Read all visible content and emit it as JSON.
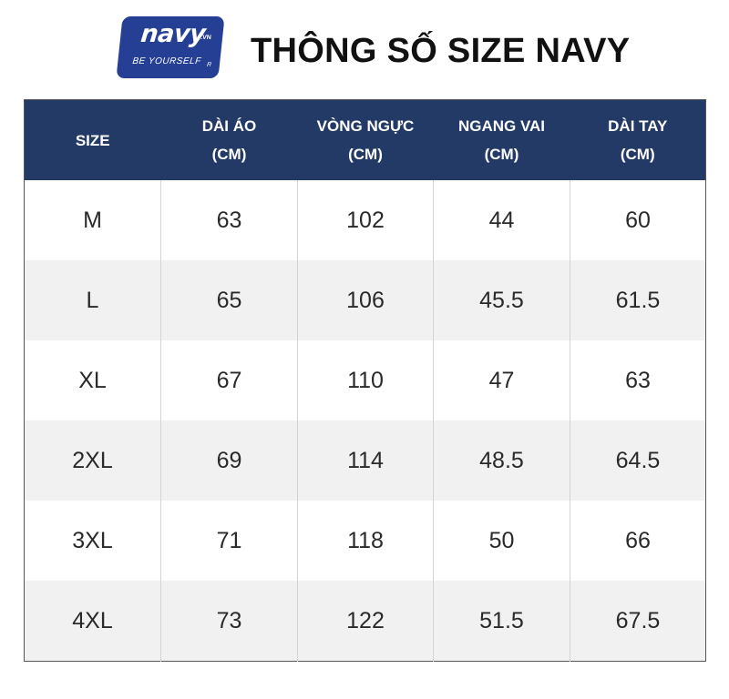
{
  "logo": {
    "word": "navy",
    "superscript": ".VN",
    "tagline": "BE YOURSELF",
    "registered": "R",
    "color": "#243f93"
  },
  "title": "THÔNG SỐ SIZE NAVY",
  "table": {
    "header_color": "#233a67",
    "headers": [
      {
        "line1": "SIZE",
        "line2": ""
      },
      {
        "line1": "DÀI ÁO",
        "line2": "(CM)"
      },
      {
        "line1": "VÒNG NGỰC",
        "line2": "(CM)"
      },
      {
        "line1": "NGANG VAI",
        "line2": "(CM)"
      },
      {
        "line1": "DÀI TAY",
        "line2": "(CM)"
      }
    ],
    "rows": [
      [
        "M",
        "63",
        "102",
        "44",
        "60"
      ],
      [
        "L",
        "65",
        "106",
        "45.5",
        "61.5"
      ],
      [
        "XL",
        "67",
        "110",
        "47",
        "63"
      ],
      [
        "2XL",
        "69",
        "114",
        "48.5",
        "64.5"
      ],
      [
        "3XL",
        "71",
        "118",
        "50",
        "66"
      ],
      [
        "4XL",
        "73",
        "122",
        "51.5",
        "67.5"
      ]
    ]
  }
}
